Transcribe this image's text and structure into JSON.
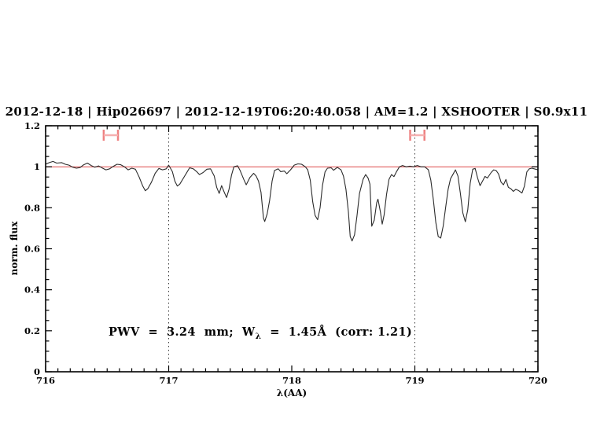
{
  "colors": {
    "accent_blue": "#2323cc",
    "continuum_red": "#dd4a4a",
    "marker_red": "#ee8181",
    "marker_red_light": "#f5b0b0",
    "spectrum_black": "#2b2b2b",
    "background": "#ffffff"
  },
  "annotation": {
    "text": "PWV = 3.24 mm; W_λ = 1.45Å (corr: 1.21)",
    "part1": "PWV  =  3.24  mm;  W",
    "sub": "λ",
    "part2": "  =  1.45Å  (corr: 1.21)"
  },
  "chart_data": {
    "type": "line",
    "title": "2012-12-18 | Hip026697 | 2012-12-19T06:20:40.058 | AM=1.2 | XSHOOTER | S0.9x11",
    "xlabel": "λ(AA)",
    "ylabel": "norm. flux",
    "xlim": [
      716,
      720
    ],
    "ylim": [
      0,
      1.2
    ],
    "grid": false,
    "x_major_ticks": [
      716,
      717,
      718,
      719,
      720
    ],
    "x_tick_labels": [
      "716",
      "717",
      "718",
      "719",
      "720"
    ],
    "x_minor_step": 0.1,
    "y_major_ticks": [
      0,
      0.2,
      0.4,
      0.6,
      0.8,
      1,
      1.2
    ],
    "y_tick_labels": [
      "0",
      "0.2",
      "0.4",
      "0.6",
      "0.8",
      "1",
      "1.2"
    ],
    "y_minor_step": 0.05,
    "guide_lines_x": [
      717,
      719
    ],
    "markers": [
      {
        "center_wavelength": 716.53,
        "half_width": 0.058,
        "flux": 1.154
      },
      {
        "center_wavelength": 719.02,
        "half_width": 0.058,
        "flux": 1.154
      }
    ],
    "series": [
      {
        "name": "observed spectrum",
        "color": "#2b2b2b",
        "points": [
          [
            716.0,
            1.012
          ],
          [
            716.03,
            1.02
          ],
          [
            716.06,
            1.026
          ],
          [
            716.09,
            1.018
          ],
          [
            716.13,
            1.02
          ],
          [
            716.16,
            1.012
          ],
          [
            716.19,
            1.008
          ],
          [
            716.22,
            0.998
          ],
          [
            716.25,
            0.993
          ],
          [
            716.28,
            0.996
          ],
          [
            716.31,
            1.01
          ],
          [
            716.34,
            1.018
          ],
          [
            716.37,
            1.006
          ],
          [
            716.4,
            0.998
          ],
          [
            716.43,
            1.004
          ],
          [
            716.46,
            0.994
          ],
          [
            716.49,
            0.985
          ],
          [
            716.52,
            0.99
          ],
          [
            716.55,
            1.002
          ],
          [
            716.58,
            1.012
          ],
          [
            716.61,
            1.01
          ],
          [
            716.64,
            1.0
          ],
          [
            716.67,
            0.985
          ],
          [
            716.7,
            0.993
          ],
          [
            716.73,
            0.988
          ],
          [
            716.76,
            0.95
          ],
          [
            716.79,
            0.905
          ],
          [
            716.81,
            0.883
          ],
          [
            716.83,
            0.893
          ],
          [
            716.86,
            0.925
          ],
          [
            716.89,
            0.968
          ],
          [
            716.92,
            0.992
          ],
          [
            716.95,
            0.985
          ],
          [
            716.98,
            0.99
          ],
          [
            717.0,
            1.008
          ],
          [
            717.03,
            0.976
          ],
          [
            717.05,
            0.93
          ],
          [
            717.07,
            0.906
          ],
          [
            717.09,
            0.915
          ],
          [
            717.12,
            0.945
          ],
          [
            717.15,
            0.975
          ],
          [
            717.17,
            0.995
          ],
          [
            717.2,
            0.99
          ],
          [
            717.23,
            0.975
          ],
          [
            717.25,
            0.962
          ],
          [
            717.28,
            0.972
          ],
          [
            717.31,
            0.988
          ],
          [
            717.34,
            0.99
          ],
          [
            717.37,
            0.955
          ],
          [
            717.39,
            0.9
          ],
          [
            717.41,
            0.87
          ],
          [
            717.43,
            0.908
          ],
          [
            717.45,
            0.878
          ],
          [
            717.47,
            0.85
          ],
          [
            717.49,
            0.89
          ],
          [
            717.51,
            0.958
          ],
          [
            717.53,
            1.0
          ],
          [
            717.56,
            1.005
          ],
          [
            717.58,
            0.982
          ],
          [
            717.61,
            0.938
          ],
          [
            717.63,
            0.912
          ],
          [
            717.66,
            0.948
          ],
          [
            717.69,
            0.968
          ],
          [
            717.71,
            0.955
          ],
          [
            717.73,
            0.93
          ],
          [
            717.75,
            0.875
          ],
          [
            717.77,
            0.75
          ],
          [
            717.78,
            0.733
          ],
          [
            717.8,
            0.77
          ],
          [
            717.82,
            0.835
          ],
          [
            717.84,
            0.93
          ],
          [
            717.86,
            0.982
          ],
          [
            717.89,
            0.99
          ],
          [
            717.91,
            0.976
          ],
          [
            717.94,
            0.979
          ],
          [
            717.96,
            0.966
          ],
          [
            717.99,
            0.985
          ],
          [
            718.02,
            1.008
          ],
          [
            718.05,
            1.014
          ],
          [
            718.08,
            1.012
          ],
          [
            718.11,
            1.0
          ],
          [
            718.13,
            0.985
          ],
          [
            718.15,
            0.935
          ],
          [
            718.17,
            0.83
          ],
          [
            718.19,
            0.762
          ],
          [
            718.21,
            0.742
          ],
          [
            718.23,
            0.8
          ],
          [
            718.25,
            0.91
          ],
          [
            718.27,
            0.975
          ],
          [
            718.29,
            0.993
          ],
          [
            718.32,
            0.995
          ],
          [
            718.34,
            0.983
          ],
          [
            718.37,
            0.997
          ],
          [
            718.4,
            0.985
          ],
          [
            718.42,
            0.955
          ],
          [
            718.44,
            0.89
          ],
          [
            718.46,
            0.78
          ],
          [
            718.475,
            0.66
          ],
          [
            718.49,
            0.638
          ],
          [
            718.51,
            0.668
          ],
          [
            718.53,
            0.76
          ],
          [
            718.55,
            0.87
          ],
          [
            718.58,
            0.94
          ],
          [
            718.6,
            0.962
          ],
          [
            718.62,
            0.945
          ],
          [
            718.635,
            0.915
          ],
          [
            718.65,
            0.71
          ],
          [
            718.67,
            0.74
          ],
          [
            718.69,
            0.825
          ],
          [
            718.7,
            0.842
          ],
          [
            718.72,
            0.78
          ],
          [
            718.735,
            0.72
          ],
          [
            718.75,
            0.765
          ],
          [
            718.77,
            0.865
          ],
          [
            718.79,
            0.938
          ],
          [
            718.81,
            0.962
          ],
          [
            718.83,
            0.952
          ],
          [
            718.85,
            0.975
          ],
          [
            718.875,
            1.0
          ],
          [
            718.9,
            1.006
          ],
          [
            718.93,
            1.0
          ],
          [
            718.96,
            1.003
          ],
          [
            718.99,
            1.0
          ],
          [
            719.02,
            1.006
          ],
          [
            719.05,
            1.0
          ],
          [
            719.08,
            1.0
          ],
          [
            719.11,
            0.985
          ],
          [
            719.13,
            0.935
          ],
          [
            719.15,
            0.84
          ],
          [
            719.17,
            0.73
          ],
          [
            719.19,
            0.66
          ],
          [
            719.21,
            0.652
          ],
          [
            719.23,
            0.71
          ],
          [
            719.25,
            0.8
          ],
          [
            719.27,
            0.89
          ],
          [
            719.29,
            0.942
          ],
          [
            719.31,
            0.963
          ],
          [
            719.33,
            0.985
          ],
          [
            719.35,
            0.955
          ],
          [
            719.37,
            0.87
          ],
          [
            719.39,
            0.775
          ],
          [
            719.41,
            0.732
          ],
          [
            719.43,
            0.79
          ],
          [
            719.45,
            0.92
          ],
          [
            719.47,
            0.988
          ],
          [
            719.49,
            0.992
          ],
          [
            719.51,
            0.945
          ],
          [
            719.53,
            0.908
          ],
          [
            719.55,
            0.93
          ],
          [
            719.57,
            0.953
          ],
          [
            719.59,
            0.945
          ],
          [
            719.62,
            0.972
          ],
          [
            719.64,
            0.985
          ],
          [
            719.66,
            0.982
          ],
          [
            719.68,
            0.965
          ],
          [
            719.7,
            0.925
          ],
          [
            719.72,
            0.912
          ],
          [
            719.74,
            0.938
          ],
          [
            719.76,
            0.9
          ],
          [
            719.78,
            0.893
          ],
          [
            719.8,
            0.88
          ],
          [
            719.82,
            0.89
          ],
          [
            719.84,
            0.885
          ],
          [
            719.87,
            0.872
          ],
          [
            719.89,
            0.905
          ],
          [
            719.91,
            0.975
          ],
          [
            719.93,
            0.99
          ],
          [
            719.95,
            0.993
          ],
          [
            719.97,
            0.99
          ],
          [
            720.0,
            0.985
          ]
        ]
      },
      {
        "name": "continuum",
        "color": "#dd4a4a",
        "points": [
          [
            716.0,
            1.0
          ],
          [
            720.0,
            1.0
          ]
        ]
      }
    ]
  }
}
